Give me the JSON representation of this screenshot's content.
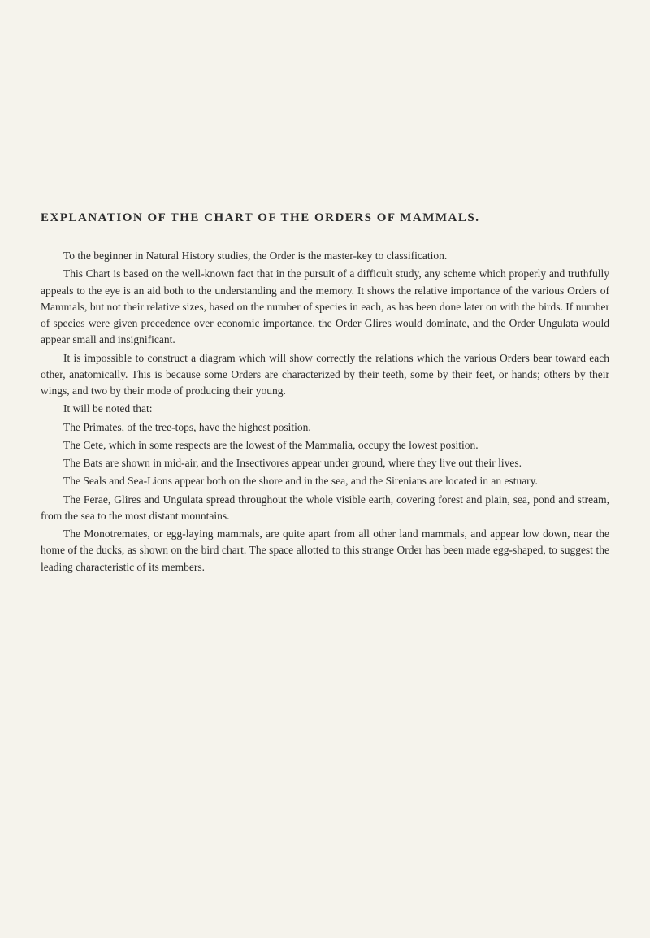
{
  "title": "EXPLANATION OF THE CHART OF THE ORDERS OF MAMMALS.",
  "paragraphs": [
    {
      "text": "To the beginner in Natural History studies, the Order is the master-key to classification.",
      "indent": true
    },
    {
      "text": "This Chart is based on the well-known fact that in the pursuit of a difficult study, any scheme which properly and truthfully appeals to the eye is an aid both to the understanding and the memory. It shows the relative importance of the various Orders of Mammals, but not their relative sizes, based on the number of species in each, as has been done later on with the birds. If number of species were given precedence over economic importance, the Order Glires would dominate, and the Order Ungulata would appear small and insignificant.",
      "indent": true
    },
    {
      "text": "It is impossible to construct a diagram which will show correctly the relations which the various Orders bear toward each other, anatomically. This is because some Orders are characterized by their teeth, some by their feet, or hands; others by their wings, and two by their mode of producing their young.",
      "indent": true
    },
    {
      "text": "It will be noted that:",
      "indent": true
    },
    {
      "text": "The Primates, of the tree-tops, have the highest position.",
      "indent": true
    },
    {
      "text": "The Cete, which in some respects are the lowest of the Mammalia, occupy the lowest position.",
      "indent": true
    },
    {
      "text": "The Bats are shown in mid-air, and the Insectivores appear under ground, where they live out their lives.",
      "indent": true
    },
    {
      "text": "The Seals and Sea-Lions appear both on the shore and in the sea, and the Sirenians are located in an estuary.",
      "indent": true
    },
    {
      "text": "The Ferae, Glires and Ungulata spread throughout the whole visible earth, covering forest and plain, sea, pond and stream, from the sea to the most distant mountains.",
      "indent": true
    },
    {
      "text": "The Monotremates, or egg-laying mammals, are quite apart from all other land mammals, and appear low down, near the home of the ducks, as shown on the bird chart. The space allotted to this strange Order has been made egg-shaped, to suggest the leading characteristic of its members.",
      "indent": true
    }
  ]
}
